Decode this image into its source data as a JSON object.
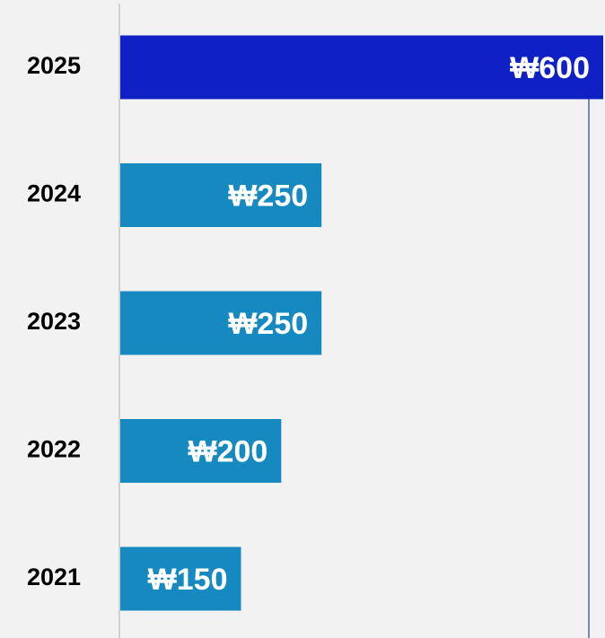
{
  "chart_data": {
    "type": "bar",
    "orientation": "horizontal",
    "categories": [
      "2025",
      "2024",
      "2023",
      "2022",
      "2021"
    ],
    "values": [
      600,
      250,
      250,
      200,
      150
    ],
    "value_labels": [
      "₩600",
      "₩250",
      "₩250",
      "₩200",
      "₩150"
    ],
    "colors": [
      "#0f21c4",
      "#1589c0",
      "#1589c0",
      "#1589c0",
      "#1589c0"
    ],
    "xlim": [
      0,
      600
    ]
  }
}
